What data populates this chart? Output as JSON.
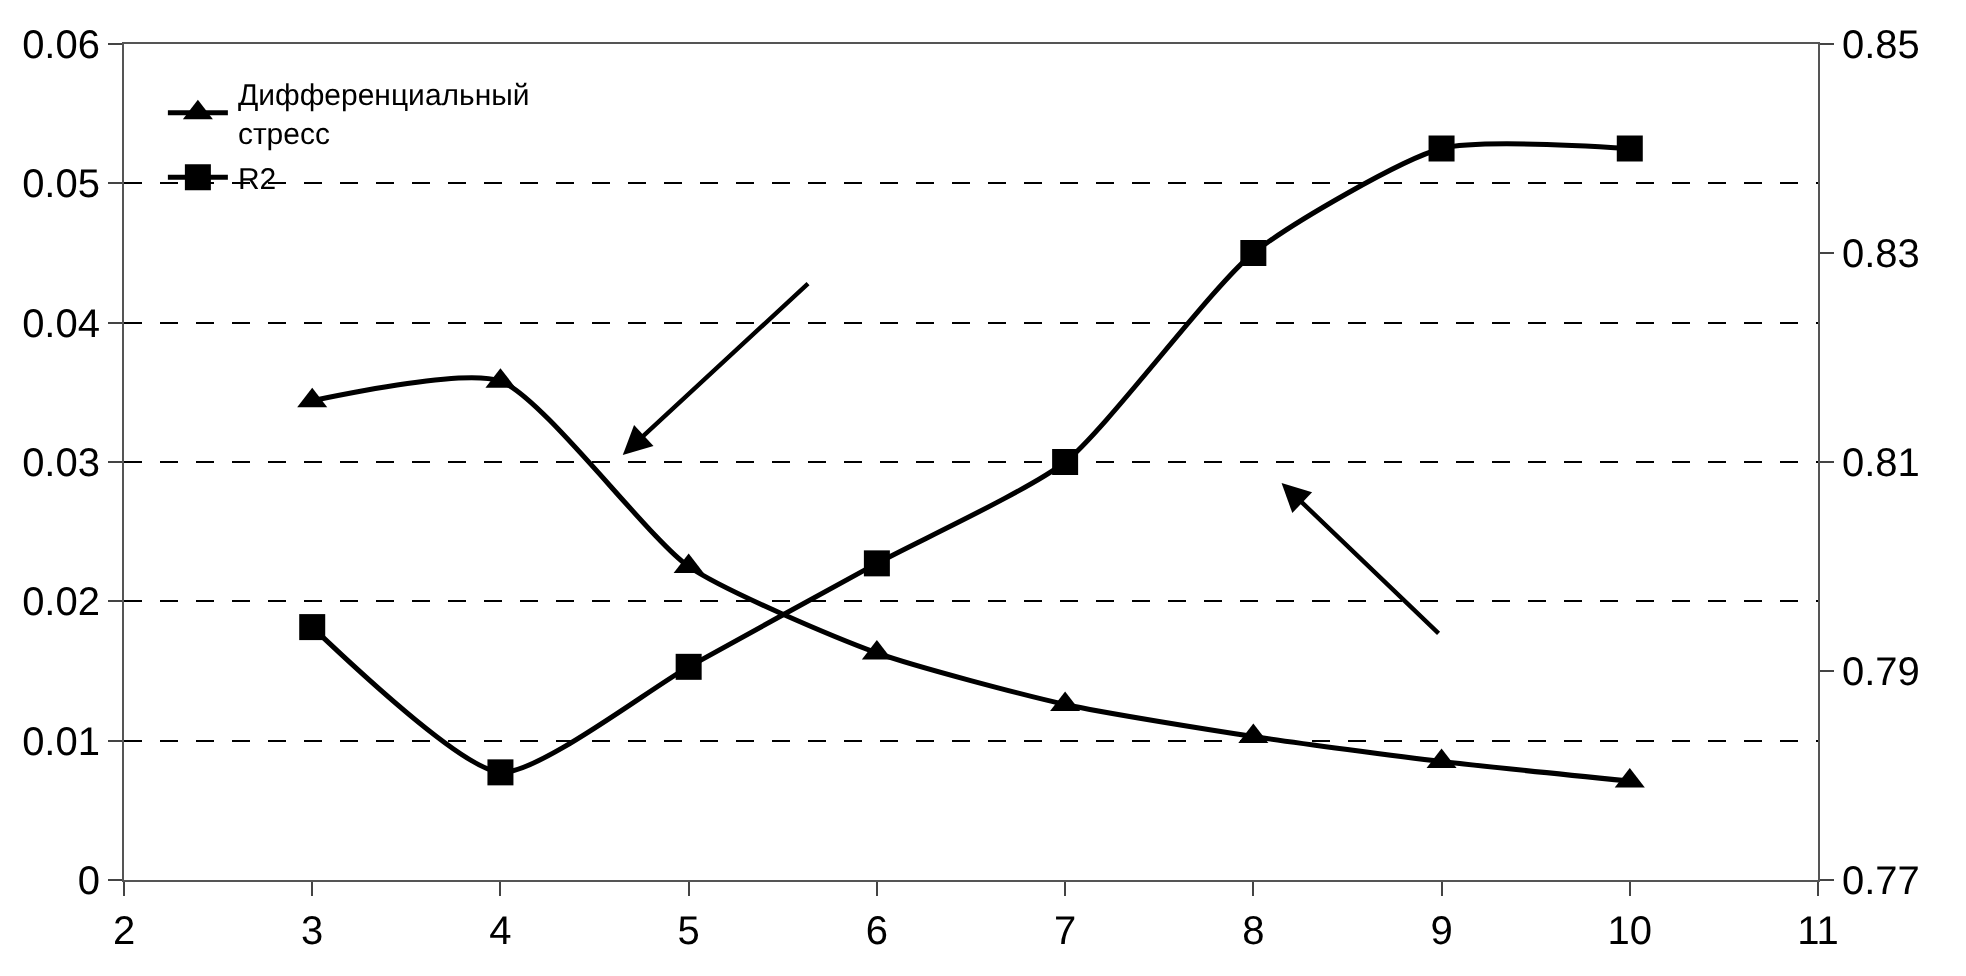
{
  "chart_data": {
    "type": "line",
    "x": [
      3,
      4,
      5,
      6,
      7,
      8,
      9,
      10
    ],
    "series": [
      {
        "name": "Дифференциальный\nстресс",
        "color": "#000000",
        "marker": "triangle",
        "values": [
          0.0344,
          0.0358,
          0.0225,
          0.0163,
          0.0126,
          0.0103,
          0.0085,
          0.0071
        ]
      },
      {
        "name": "R2",
        "color": "#000000",
        "marker": "square",
        "axis": "y2",
        "values": [
          0.7942,
          0.7803,
          0.7904,
          0.8003,
          0.81,
          0.83,
          0.84,
          0.84
        ]
      }
    ],
    "xlim": [
      2,
      11
    ],
    "xticks": [
      2,
      3,
      4,
      5,
      6,
      7,
      8,
      9,
      10,
      11
    ],
    "ylim": [
      0,
      0.06
    ],
    "yticks": [
      {
        "value": 0,
        "label": "0"
      },
      {
        "value": 0.01,
        "label": "0.01"
      },
      {
        "value": 0.02,
        "label": "0.02"
      },
      {
        "value": 0.03,
        "label": "0.03"
      },
      {
        "value": 0.04,
        "label": "0.04"
      },
      {
        "value": 0.05,
        "label": "0.05"
      },
      {
        "value": 0.06,
        "label": "0.06"
      }
    ],
    "y2lim": [
      0.77,
      0.85
    ],
    "y2ticks": [
      0.77,
      0.79,
      0.81,
      0.83,
      0.85
    ],
    "grid": "y",
    "line_style": "solid",
    "legend": "top left"
  }
}
